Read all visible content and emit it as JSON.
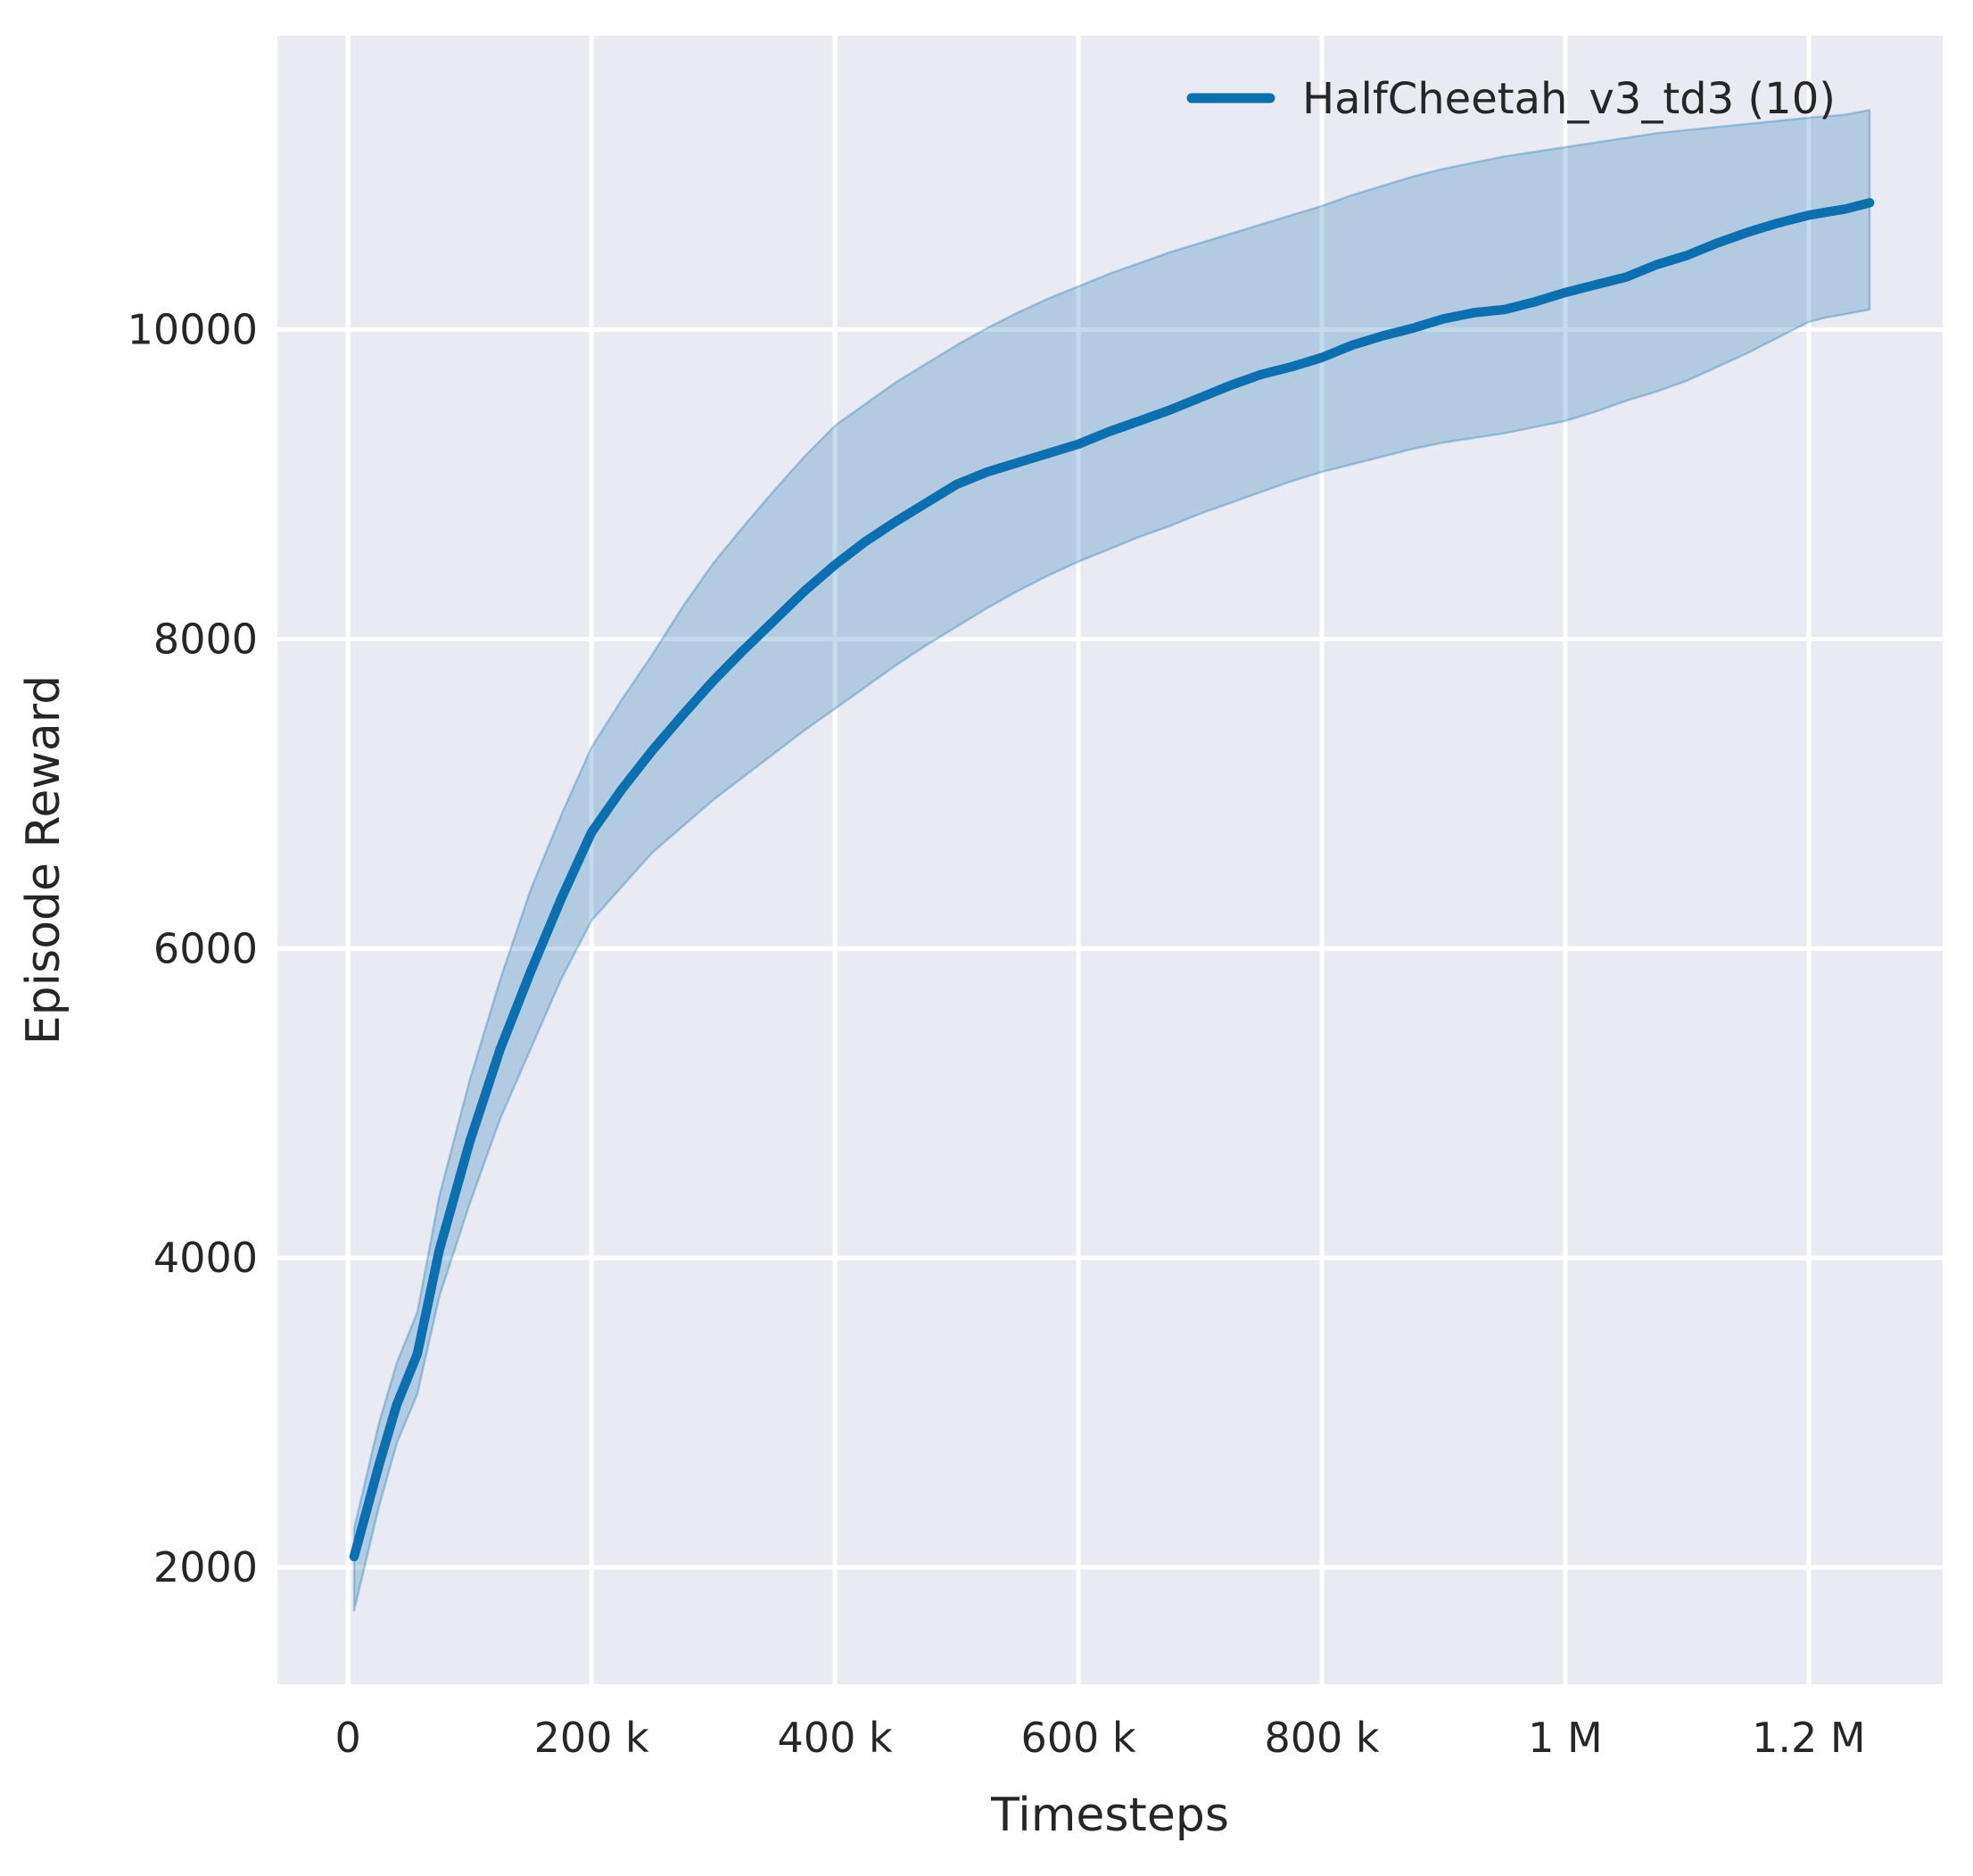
{
  "figure": {
    "background": "#ffffff"
  },
  "style": {
    "plot_bg": "#eaeaf2",
    "grid_color": "#ffffff",
    "text_color": "#262626",
    "tick_font_size": 46,
    "label_font_size": 52,
    "legend_font_size": 48
  },
  "legend": {
    "items": [
      {
        "label": "HalfCheetah_v3_td3 (10)",
        "color": "#0b70b0"
      }
    ]
  },
  "chart_data": {
    "type": "line",
    "title": "",
    "xlabel": "Timesteps",
    "ylabel": "Episode Reward",
    "xlim": [
      -58000,
      1310000
    ],
    "ylim": [
      1245,
      11900
    ],
    "grid": true,
    "legend_position": "upper right",
    "x_ticks": [
      {
        "value": 0,
        "label": "0"
      },
      {
        "value": 200000,
        "label": "200 k"
      },
      {
        "value": 400000,
        "label": "400 k"
      },
      {
        "value": 600000,
        "label": "600 k"
      },
      {
        "value": 800000,
        "label": "800 k"
      },
      {
        "value": 1000000,
        "label": "1 M"
      },
      {
        "value": 1200000,
        "label": "1.2 M"
      }
    ],
    "y_ticks": [
      {
        "value": 2000,
        "label": "2000"
      },
      {
        "value": 4000,
        "label": "4000"
      },
      {
        "value": 6000,
        "label": "6000"
      },
      {
        "value": 8000,
        "label": "8000"
      },
      {
        "value": 10000,
        "label": "10000"
      }
    ],
    "series": [
      {
        "name": "HalfCheetah_v3_td3 (10)",
        "color": "#0b70b0",
        "band_fill": "rgba(11,112,176,0.25)",
        "band_edge": "rgba(11,112,176,0.30)",
        "x": [
          5000,
          25000,
          40000,
          57000,
          75000,
          100000,
          125000,
          150000,
          175000,
          200000,
          225000,
          250000,
          275000,
          300000,
          325000,
          350000,
          375000,
          400000,
          425000,
          450000,
          475000,
          500000,
          525000,
          550000,
          575000,
          600000,
          625000,
          650000,
          675000,
          700000,
          725000,
          750000,
          775000,
          800000,
          825000,
          850000,
          875000,
          900000,
          925000,
          950000,
          975000,
          1000000,
          1025000,
          1050000,
          1075000,
          1100000,
          1125000,
          1150000,
          1175000,
          1200000,
          1215000,
          1230000,
          1250000
        ],
        "mean": [
          2070,
          2650,
          3050,
          3380,
          4050,
          4750,
          5350,
          5850,
          6320,
          6750,
          7030,
          7280,
          7510,
          7730,
          7930,
          8120,
          8310,
          8480,
          8630,
          8760,
          8880,
          9000,
          9080,
          9140,
          9200,
          9260,
          9340,
          9410,
          9480,
          9560,
          9640,
          9710,
          9760,
          9820,
          9900,
          9960,
          10010,
          10070,
          10110,
          10130,
          10180,
          10240,
          10290,
          10340,
          10420,
          10480,
          10560,
          10630,
          10690,
          10740,
          10760,
          10780,
          10820
        ],
        "lower": [
          1720,
          2380,
          2800,
          3120,
          3750,
          4350,
          4900,
          5350,
          5800,
          6180,
          6400,
          6620,
          6790,
          6960,
          7110,
          7260,
          7410,
          7550,
          7690,
          7830,
          7960,
          8080,
          8200,
          8310,
          8410,
          8500,
          8580,
          8660,
          8730,
          8810,
          8880,
          8950,
          9020,
          9080,
          9130,
          9180,
          9230,
          9270,
          9300,
          9330,
          9370,
          9410,
          9470,
          9540,
          9600,
          9670,
          9760,
          9850,
          9950,
          10050,
          10080,
          10100,
          10130
        ],
        "upper": [
          2250,
          2920,
          3320,
          3650,
          4400,
          5150,
          5800,
          6380,
          6860,
          7300,
          7610,
          7900,
          8210,
          8490,
          8730,
          8960,
          9180,
          9380,
          9520,
          9660,
          9780,
          9900,
          10010,
          10110,
          10200,
          10280,
          10360,
          10430,
          10500,
          10560,
          10620,
          10680,
          10740,
          10800,
          10870,
          10930,
          10990,
          11040,
          11080,
          11120,
          11150,
          11180,
          11210,
          11240,
          11270,
          11290,
          11310,
          11330,
          11350,
          11370,
          11380,
          11390,
          11420
        ]
      }
    ]
  }
}
